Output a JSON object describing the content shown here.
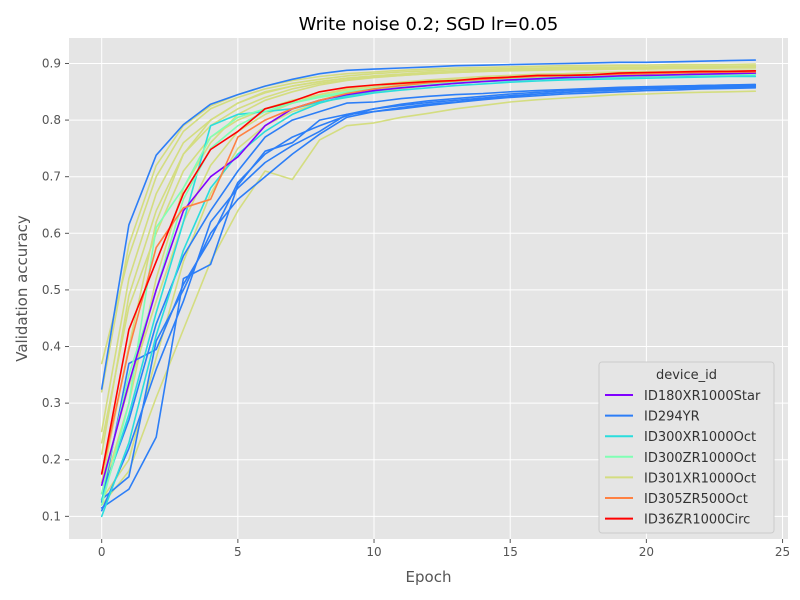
{
  "chart_data": {
    "type": "line",
    "title": "Write noise 0.2; SGD lr=0.05",
    "xlabel": "Epoch",
    "ylabel": "Validation accuracy",
    "xlim": [
      -1.2,
      25.2
    ],
    "ylim": [
      0.06,
      0.945
    ],
    "xticks": [
      0,
      5,
      10,
      15,
      20,
      25
    ],
    "yticks": [
      0.1,
      0.2,
      0.3,
      0.4,
      0.5,
      0.6,
      0.7,
      0.8,
      0.9
    ],
    "grid": true,
    "legend": {
      "title": "device_id",
      "placement": "lower-right",
      "entries": [
        {
          "name": "ID180XR1000Star",
          "color": "#8000ff"
        },
        {
          "name": "ID294YR",
          "color": "#2c7ef7"
        },
        {
          "name": "ID300XR1000Oct",
          "color": "#2adddd"
        },
        {
          "name": "ID300ZR1000Oct",
          "color": "#80ffb4"
        },
        {
          "name": "ID301XR1000Oct",
          "color": "#d4dd80"
        },
        {
          "name": "ID305ZR500Oct",
          "color": "#ff8142"
        },
        {
          "name": "ID36ZR1000Circ",
          "color": "#ff0000"
        }
      ]
    },
    "x": [
      0,
      1,
      2,
      3,
      4,
      5,
      6,
      7,
      8,
      9,
      10,
      11,
      12,
      13,
      14,
      15,
      16,
      17,
      18,
      19,
      20,
      21,
      22,
      23,
      24
    ],
    "series": [
      {
        "device": "ID301XR1000Oct",
        "color": "#d4dd80",
        "values": [
          0.37,
          0.56,
          0.7,
          0.78,
          0.82,
          0.84,
          0.855,
          0.865,
          0.872,
          0.878,
          0.882,
          0.885,
          0.887,
          0.889,
          0.89,
          0.891,
          0.892,
          0.893,
          0.893,
          0.894,
          0.894,
          0.895,
          0.895,
          0.895,
          0.896
        ]
      },
      {
        "device": "ID301XR1000Oct",
        "color": "#d4dd80",
        "values": [
          0.25,
          0.52,
          0.67,
          0.76,
          0.8,
          0.83,
          0.85,
          0.86,
          0.868,
          0.874,
          0.878,
          0.881,
          0.884,
          0.886,
          0.887,
          0.888,
          0.889,
          0.89,
          0.891,
          0.891,
          0.892,
          0.892,
          0.893,
          0.893,
          0.893
        ]
      },
      {
        "device": "ID301XR1000Oct",
        "color": "#d4dd80",
        "values": [
          0.32,
          0.58,
          0.72,
          0.79,
          0.825,
          0.845,
          0.86,
          0.87,
          0.877,
          0.882,
          0.885,
          0.888,
          0.89,
          0.892,
          0.893,
          0.894,
          0.895,
          0.896,
          0.896,
          0.897,
          0.897,
          0.898,
          0.898,
          0.898,
          0.899
        ]
      },
      {
        "device": "ID301XR1000Oct",
        "color": "#d4dd80",
        "values": [
          0.21,
          0.49,
          0.64,
          0.74,
          0.79,
          0.82,
          0.84,
          0.855,
          0.865,
          0.871,
          0.876,
          0.879,
          0.882,
          0.884,
          0.886,
          0.887,
          0.888,
          0.889,
          0.889,
          0.89,
          0.89,
          0.891,
          0.891,
          0.892,
          0.892
        ]
      },
      {
        "device": "ID301XR1000Oct",
        "color": "#d4dd80",
        "values": [
          0.14,
          0.3,
          0.52,
          0.68,
          0.76,
          0.81,
          0.835,
          0.85,
          0.862,
          0.87,
          0.875,
          0.879,
          0.882,
          0.884,
          0.886,
          0.888,
          0.889,
          0.89,
          0.891,
          0.892,
          0.892,
          0.893,
          0.893,
          0.894,
          0.894
        ]
      },
      {
        "device": "ID301XR1000Oct",
        "color": "#d4dd80",
        "values": [
          0.16,
          0.4,
          0.62,
          0.74,
          0.8,
          0.83,
          0.848,
          0.86,
          0.868,
          0.874,
          0.878,
          0.881,
          0.884,
          0.886,
          0.888,
          0.889,
          0.89,
          0.891,
          0.892,
          0.893,
          0.893,
          0.894,
          0.894,
          0.895,
          0.895
        ]
      },
      {
        "device": "ID301XR1000Oct",
        "color": "#d4dd80",
        "values": [
          0.13,
          0.2,
          0.38,
          0.55,
          0.67,
          0.75,
          0.79,
          0.815,
          0.83,
          0.842,
          0.85,
          0.856,
          0.861,
          0.865,
          0.868,
          0.871,
          0.873,
          0.875,
          0.877,
          0.878,
          0.879,
          0.88,
          0.881,
          0.882,
          0.882
        ]
      },
      {
        "device": "ID301XR1000Oct",
        "color": "#d4dd80",
        "values": [
          0.12,
          0.18,
          0.31,
          0.43,
          0.55,
          0.64,
          0.71,
          0.695,
          0.765,
          0.79,
          0.795,
          0.805,
          0.812,
          0.82,
          0.826,
          0.832,
          0.836,
          0.839,
          0.842,
          0.845,
          0.846,
          0.848,
          0.849,
          0.85,
          0.851
        ]
      },
      {
        "device": "ID301XR1000Oct",
        "color": "#d4dd80",
        "values": [
          0.23,
          0.47,
          0.6,
          0.71,
          0.77,
          0.8,
          0.82,
          0.835,
          0.845,
          0.853,
          0.859,
          0.864,
          0.868,
          0.871,
          0.874,
          0.876,
          0.878,
          0.88,
          0.881,
          0.882,
          0.883,
          0.884,
          0.885,
          0.885,
          0.886
        ]
      },
      {
        "device": "ID301XR1000Oct",
        "color": "#d4dd80",
        "values": [
          0.16,
          0.33,
          0.48,
          0.62,
          0.72,
          0.78,
          0.81,
          0.83,
          0.845,
          0.855,
          0.862,
          0.867,
          0.871,
          0.874,
          0.877,
          0.879,
          0.881,
          0.882,
          0.884,
          0.885,
          0.886,
          0.886,
          0.887,
          0.888,
          0.888
        ]
      },
      {
        "device": "ID294YR",
        "color": "#2c7ef7",
        "values": [
          0.325,
          0.615,
          0.738,
          0.792,
          0.828,
          0.845,
          0.86,
          0.872,
          0.882,
          0.888,
          0.89,
          0.892,
          0.894,
          0.896,
          0.897,
          0.898,
          0.899,
          0.9,
          0.901,
          0.902,
          0.902,
          0.903,
          0.904,
          0.905,
          0.906
        ]
      },
      {
        "device": "ID294YR",
        "color": "#2c7ef7",
        "values": [
          0.115,
          0.148,
          0.24,
          0.52,
          0.545,
          0.685,
          0.745,
          0.76,
          0.8,
          0.81,
          0.815,
          0.822,
          0.828,
          0.832,
          0.837,
          0.842,
          0.846,
          0.849,
          0.852,
          0.854,
          0.856,
          0.858,
          0.859,
          0.86,
          0.861
        ]
      },
      {
        "device": "ID294YR",
        "color": "#2c7ef7",
        "values": [
          0.13,
          0.17,
          0.41,
          0.5,
          0.6,
          0.66,
          0.7,
          0.74,
          0.775,
          0.805,
          0.815,
          0.82,
          0.826,
          0.831,
          0.836,
          0.84,
          0.843,
          0.846,
          0.848,
          0.85,
          0.852,
          0.853,
          0.855,
          0.856,
          0.857
        ]
      },
      {
        "device": "ID294YR",
        "color": "#2c7ef7",
        "values": [
          0.125,
          0.37,
          0.395,
          0.51,
          0.59,
          0.69,
          0.74,
          0.77,
          0.79,
          0.808,
          0.82,
          0.828,
          0.834,
          0.838,
          0.842,
          0.846,
          0.849,
          0.852,
          0.854,
          0.856,
          0.858,
          0.859,
          0.861,
          0.862,
          0.863
        ]
      },
      {
        "device": "ID294YR",
        "color": "#2c7ef7",
        "values": [
          0.14,
          0.27,
          0.44,
          0.56,
          0.64,
          0.71,
          0.77,
          0.8,
          0.815,
          0.83,
          0.832,
          0.838,
          0.842,
          0.845,
          0.847,
          0.85,
          0.852,
          0.854,
          0.856,
          0.858,
          0.859,
          0.86,
          0.861,
          0.862,
          0.862
        ]
      },
      {
        "device": "ID294YR",
        "color": "#2c7ef7",
        "values": [
          0.11,
          0.22,
          0.36,
          0.48,
          0.62,
          0.68,
          0.725,
          0.755,
          0.78,
          0.81,
          0.82,
          0.826,
          0.831,
          0.835,
          0.839,
          0.843,
          0.846,
          0.849,
          0.851,
          0.853,
          0.855,
          0.856,
          0.857,
          0.858,
          0.859
        ]
      },
      {
        "device": "ID300XR1000Oct",
        "color": "#2adddd",
        "values": [
          0.13,
          0.28,
          0.46,
          0.62,
          0.79,
          0.81,
          0.815,
          0.82,
          0.832,
          0.84,
          0.848,
          0.853,
          0.857,
          0.861,
          0.864,
          0.867,
          0.869,
          0.871,
          0.872,
          0.873,
          0.874,
          0.875,
          0.876,
          0.877,
          0.877
        ]
      },
      {
        "device": "ID300XR1000Oct",
        "color": "#2adddd",
        "values": [
          0.1,
          0.23,
          0.42,
          0.57,
          0.68,
          0.74,
          0.78,
          0.81,
          0.83,
          0.843,
          0.851,
          0.857,
          0.861,
          0.865,
          0.868,
          0.87,
          0.872,
          0.874,
          0.875,
          0.876,
          0.877,
          0.878,
          0.879,
          0.879,
          0.88
        ]
      },
      {
        "device": "ID300ZR1000Oct",
        "color": "#80ffb4",
        "values": [
          0.12,
          0.3,
          0.61,
          0.68,
          0.77,
          0.805,
          0.82,
          0.83,
          0.842,
          0.85,
          0.856,
          0.861,
          0.865,
          0.868,
          0.871,
          0.873,
          0.875,
          0.876,
          0.877,
          0.878,
          0.879,
          0.88,
          0.881,
          0.881,
          0.882
        ]
      },
      {
        "device": "ID300ZR1000Oct",
        "color": "#80ffb4",
        "values": [
          0.14,
          0.35,
          0.5,
          0.66,
          0.75,
          0.79,
          0.815,
          0.83,
          0.84,
          0.848,
          0.853,
          0.858,
          0.862,
          0.866,
          0.869,
          0.871,
          0.873,
          0.875,
          0.876,
          0.877,
          0.878,
          0.879,
          0.88,
          0.88,
          0.881
        ]
      },
      {
        "device": "ID180XR1000Star",
        "color": "#8000ff",
        "values": [
          0.155,
          0.335,
          0.5,
          0.64,
          0.7,
          0.735,
          0.79,
          0.82,
          0.835,
          0.845,
          0.852,
          0.857,
          0.861,
          0.865,
          0.868,
          0.871,
          0.873,
          0.875,
          0.876,
          0.878,
          0.879,
          0.88,
          0.881,
          0.882,
          0.883
        ]
      },
      {
        "device": "ID305ZR500Oct",
        "color": "#ff8142",
        "values": [
          0.175,
          0.395,
          0.575,
          0.645,
          0.66,
          0.77,
          0.8,
          0.82,
          0.835,
          0.847,
          0.855,
          0.861,
          0.866,
          0.869,
          0.872,
          0.875,
          0.877,
          0.879,
          0.88,
          0.881,
          0.882,
          0.883,
          0.884,
          0.885,
          0.885
        ]
      },
      {
        "device": "ID36ZR1000Circ",
        "color": "#ff0000",
        "values": [
          0.175,
          0.43,
          0.55,
          0.67,
          0.748,
          0.78,
          0.82,
          0.833,
          0.85,
          0.858,
          0.862,
          0.865,
          0.868,
          0.87,
          0.874,
          0.876,
          0.879,
          0.879,
          0.88,
          0.883,
          0.884,
          0.885,
          0.886,
          0.886,
          0.887
        ]
      }
    ]
  }
}
